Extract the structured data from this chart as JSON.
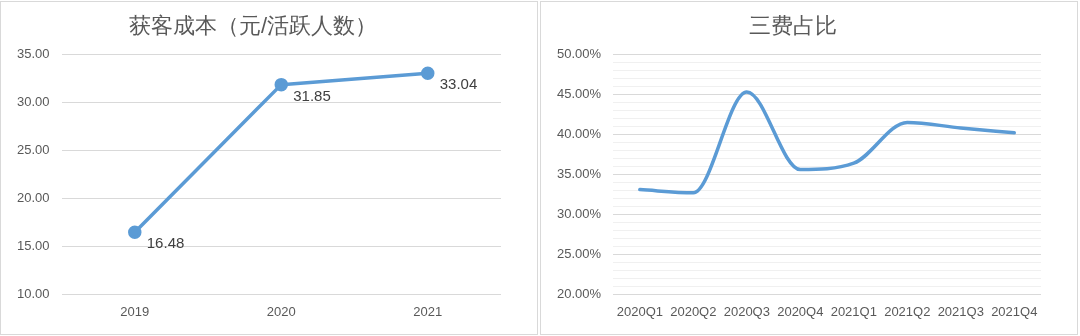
{
  "chart_data": [
    {
      "type": "line",
      "title": "获客成本（元/活跃人数）",
      "categories": [
        "2019",
        "2020",
        "2021"
      ],
      "series": [
        {
          "color": "#5b9bd5",
          "values": [
            16.48,
            31.85,
            33.04
          ]
        }
      ],
      "ylim": [
        10,
        35
      ],
      "yticks": [
        {
          "value": 10,
          "label": "10.00"
        },
        {
          "value": 15,
          "label": "15.00"
        },
        {
          "value": 20,
          "label": "20.00"
        },
        {
          "value": 25,
          "label": "25.00"
        },
        {
          "value": 30,
          "label": "30.00"
        },
        {
          "value": 35,
          "label": "35.00"
        }
      ],
      "grid": "y",
      "marker": "circle",
      "line_style": "solid",
      "data_labels": true,
      "legend": false
    },
    {
      "type": "line",
      "title": "三费占比",
      "categories": [
        "2020Q1",
        "2020Q2",
        "2020Q3",
        "2020Q4",
        "2021Q1",
        "2021Q2",
        "2021Q3",
        "2021Q4"
      ],
      "series": [
        {
          "color": "#5b9bd5",
          "values": [
            33.1,
            32.7,
            45.3,
            35.6,
            36.4,
            41.5,
            40.8,
            40.2
          ]
        }
      ],
      "ylim": [
        20,
        50
      ],
      "yticks": [
        {
          "value": 20,
          "label": "20.00%"
        },
        {
          "value": 21,
          "label": null
        },
        {
          "value": 22,
          "label": null
        },
        {
          "value": 23,
          "label": null
        },
        {
          "value": 24,
          "label": null
        },
        {
          "value": 25,
          "label": "25.00%"
        },
        {
          "value": 26,
          "label": null
        },
        {
          "value": 27,
          "label": null
        },
        {
          "value": 28,
          "label": null
        },
        {
          "value": 29,
          "label": null
        },
        {
          "value": 30,
          "label": "30.00%"
        },
        {
          "value": 31,
          "label": null
        },
        {
          "value": 32,
          "label": null
        },
        {
          "value": 33,
          "label": null
        },
        {
          "value": 34,
          "label": null
        },
        {
          "value": 35,
          "label": "35.00%"
        },
        {
          "value": 36,
          "label": null
        },
        {
          "value": 37,
          "label": null
        },
        {
          "value": 38,
          "label": null
        },
        {
          "value": 39,
          "label": null
        },
        {
          "value": 40,
          "label": "40.00%"
        },
        {
          "value": 41,
          "label": null
        },
        {
          "value": 42,
          "label": null
        },
        {
          "value": 43,
          "label": null
        },
        {
          "value": 44,
          "label": null
        },
        {
          "value": 45,
          "label": "45.00%"
        },
        {
          "value": 46,
          "label": null
        },
        {
          "value": 47,
          "label": null
        },
        {
          "value": 48,
          "label": null
        },
        {
          "value": 49,
          "label": null
        },
        {
          "value": 50,
          "label": "50.00%"
        }
      ],
      "grid": "y",
      "marker": "none",
      "line_style": "solid",
      "legend": false
    }
  ]
}
